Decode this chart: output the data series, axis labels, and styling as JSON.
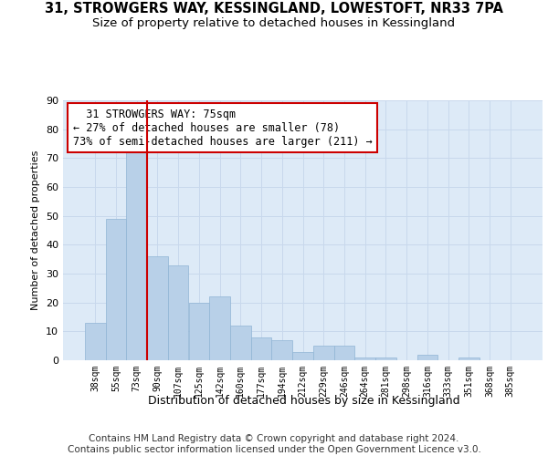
{
  "title": "31, STROWGERS WAY, KESSINGLAND, LOWESTOFT, NR33 7PA",
  "subtitle": "Size of property relative to detached houses in Kessingland",
  "xlabel": "Distribution of detached houses by size in Kessingland",
  "ylabel": "Number of detached properties",
  "bar_labels": [
    "38sqm",
    "55sqm",
    "73sqm",
    "90sqm",
    "107sqm",
    "125sqm",
    "142sqm",
    "160sqm",
    "177sqm",
    "194sqm",
    "212sqm",
    "229sqm",
    "246sqm",
    "264sqm",
    "281sqm",
    "298sqm",
    "316sqm",
    "333sqm",
    "351sqm",
    "368sqm",
    "385sqm"
  ],
  "bar_values": [
    13,
    49,
    74,
    36,
    33,
    20,
    22,
    12,
    8,
    7,
    3,
    5,
    5,
    1,
    1,
    0,
    2,
    0,
    1,
    0,
    0
  ],
  "bar_color": "#b8d0e8",
  "bar_edge_color": "#90b4d4",
  "vline_color": "#cc0000",
  "annotation_text": "  31 STROWGERS WAY: 75sqm\n← 27% of detached houses are smaller (78)\n73% of semi-detached houses are larger (211) →",
  "annotation_box_color": "#ffffff",
  "annotation_box_edge": "#cc0000",
  "grid_color": "#c8d8ec",
  "background_color": "#ddeaf7",
  "ylim": [
    0,
    90
  ],
  "yticks": [
    0,
    10,
    20,
    30,
    40,
    50,
    60,
    70,
    80,
    90
  ],
  "footer": "Contains HM Land Registry data © Crown copyright and database right 2024.\nContains public sector information licensed under the Open Government Licence v3.0.",
  "title_fontsize": 10.5,
  "subtitle_fontsize": 9.5,
  "footer_fontsize": 7.5,
  "annot_fontsize": 8.5
}
